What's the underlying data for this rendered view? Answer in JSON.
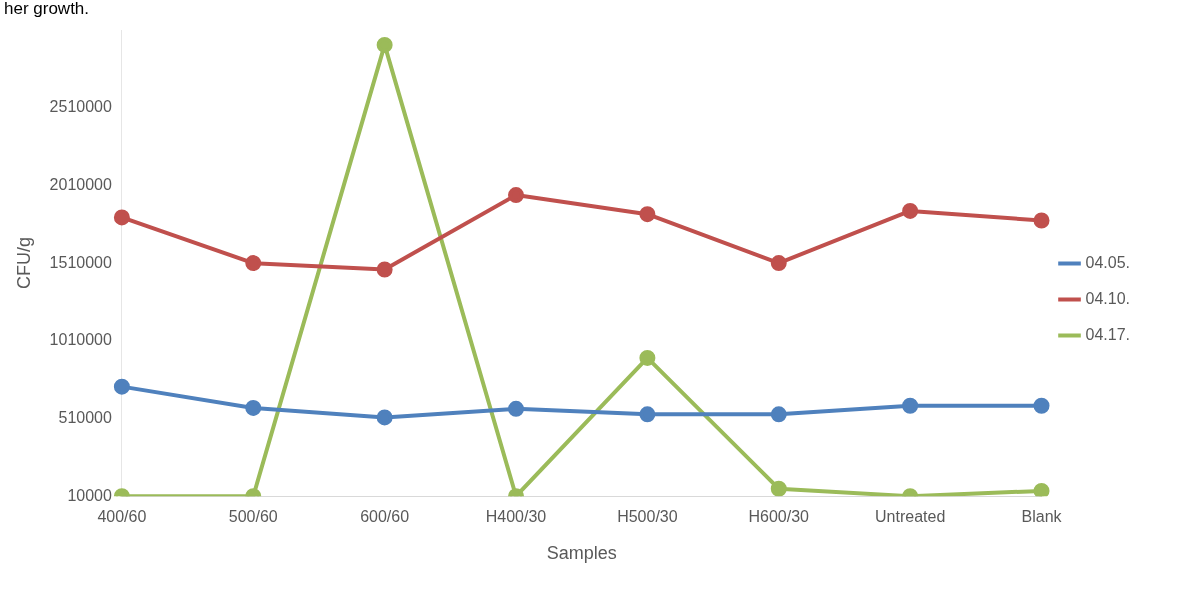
{
  "chart_data": {
    "type": "line",
    "annotations": [
      "her growth."
    ],
    "xlabel": "Samples",
    "ylabel": "CFU/g",
    "categories": [
      "400/60",
      "500/60",
      "600/60",
      "H400/30",
      "H500/30",
      "H600/30",
      "Untreated",
      "Blank"
    ],
    "series": [
      {
        "name": "04.05.",
        "color": "#4f81bd",
        "values": [
          715000,
          578000,
          517000,
          572000,
          537000,
          537000,
          592000,
          592000
        ]
      },
      {
        "name": "04.10.",
        "color": "#c0504d",
        "values": [
          1804000,
          1510000,
          1469000,
          1948000,
          1825000,
          1510000,
          1846000,
          1784000
        ]
      },
      {
        "name": "04.17.",
        "color": "#9bbb59",
        "values": [
          10000,
          10000,
          2914000,
          10000,
          900000,
          58000,
          10000,
          44000
        ]
      }
    ],
    "ylim": [
      10000,
      3010000
    ],
    "yticks": [
      10000,
      510000,
      1010000,
      1510000,
      2010000,
      2510000
    ],
    "grid": false,
    "legend": "right",
    "marker": "circle",
    "line_style": "solid"
  }
}
